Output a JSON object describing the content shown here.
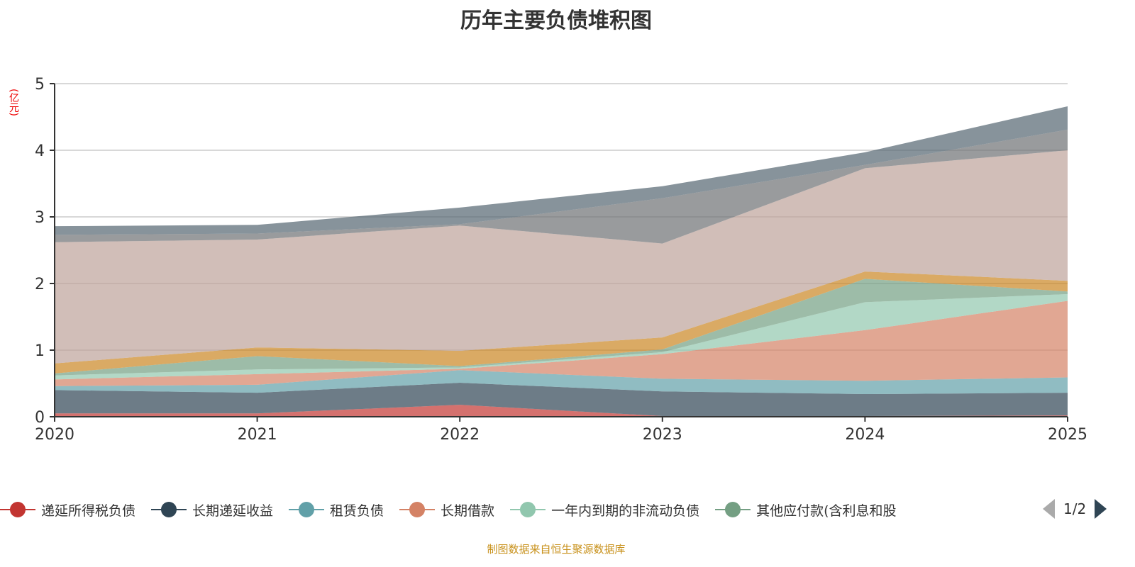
{
  "chart_data": {
    "type": "area",
    "stacked": true,
    "title": "历年主要负债堆积图",
    "ylabel": "(亿元)",
    "ylim": [
      0,
      5
    ],
    "yticks": [
      "0",
      "1",
      "2",
      "3",
      "4",
      "5"
    ],
    "categories": [
      "2020",
      "2021",
      "2022",
      "2023",
      "2024",
      "2025"
    ],
    "grid": true,
    "legend_position": "bottom",
    "series": [
      {
        "name": "递延所得税负债",
        "color": "#c23531",
        "values": [
          0.05,
          0.05,
          0.18,
          0.01,
          0.01,
          0.02
        ]
      },
      {
        "name": "长期递延收益",
        "color": "#2f4554",
        "values": [
          0.35,
          0.31,
          0.33,
          0.37,
          0.33,
          0.34
        ]
      },
      {
        "name": "租赁负债",
        "color": "#61a0a8",
        "values": [
          0.06,
          0.12,
          0.19,
          0.19,
          0.2,
          0.23
        ]
      },
      {
        "name": "长期借款",
        "color": "#d48265",
        "values": [
          0.1,
          0.16,
          0.02,
          0.37,
          0.76,
          1.15
        ]
      },
      {
        "name": "一年内到期的非流动负债",
        "color": "#91c7ae",
        "values": [
          0.06,
          0.07,
          0.02,
          0.03,
          0.42,
          0.1
        ]
      },
      {
        "name": "其他应付款(含利息和股",
        "color": "#749f83",
        "values": [
          0.03,
          0.2,
          0.02,
          0.04,
          0.35,
          0.04
        ]
      },
      {
        "name": "",
        "color": "#ca8622",
        "values": [
          0.15,
          0.13,
          0.23,
          0.18,
          0.11,
          0.16
        ]
      },
      {
        "name": "",
        "color": "#bda29a",
        "values": [
          1.82,
          1.62,
          1.88,
          1.41,
          1.55,
          1.96
        ]
      },
      {
        "name": "",
        "color": "#6e7074",
        "values": [
          0.11,
          0.09,
          0.02,
          0.68,
          0.05,
          0.31
        ]
      },
      {
        "name": "",
        "color": "#546570",
        "values": [
          0.13,
          0.13,
          0.25,
          0.18,
          0.19,
          0.35
        ]
      }
    ]
  },
  "legend": {
    "page": "1/2"
  },
  "source": "制图数据来自恒生聚源数据库"
}
